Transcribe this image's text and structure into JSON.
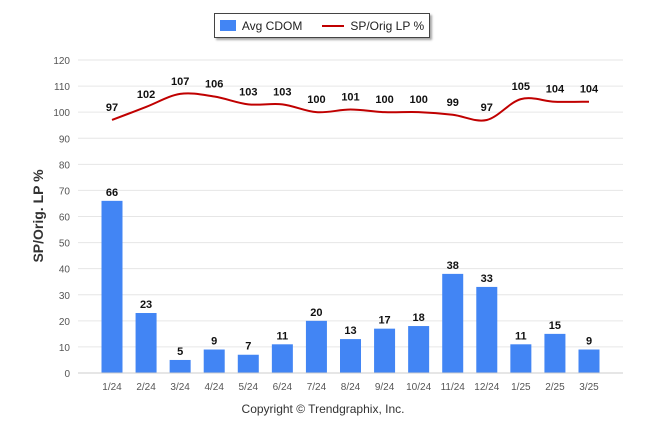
{
  "colors": {
    "bar": "#4285f4",
    "line": "#c00000",
    "grid": "#e6e6e6",
    "axis_text": "#555555"
  },
  "legend": {
    "bar_label": "Avg CDOM",
    "line_label": "SP/Orig LP %"
  },
  "footer": {
    "copyright": "Copyright © Trendgraphix, Inc."
  },
  "chart_data": {
    "type": "bar",
    "categories": [
      "1/24",
      "2/24",
      "3/24",
      "4/24",
      "5/24",
      "6/24",
      "7/24",
      "8/24",
      "9/24",
      "10/24",
      "11/24",
      "12/24",
      "1/25",
      "2/25",
      "3/25"
    ],
    "series": [
      {
        "name": "Avg CDOM",
        "type": "bar",
        "values": [
          66,
          23,
          5,
          9,
          7,
          11,
          20,
          13,
          17,
          18,
          38,
          33,
          11,
          15,
          9
        ]
      },
      {
        "name": "SP/Orig LP %",
        "type": "line",
        "values": [
          97,
          102,
          107,
          106,
          103,
          103,
          100,
          101,
          100,
          100,
          99,
          97,
          105,
          104,
          104
        ]
      }
    ],
    "ylabel": "SP/Orig. LP %",
    "xlabel": "",
    "ylim": [
      0,
      120
    ],
    "yticks": [
      0,
      10,
      20,
      30,
      40,
      50,
      60,
      70,
      80,
      90,
      100,
      110,
      120
    ],
    "grid": true,
    "legend_position": "top-center"
  }
}
